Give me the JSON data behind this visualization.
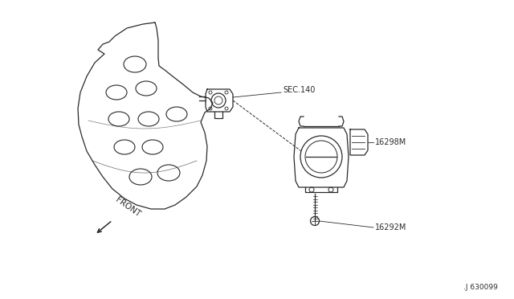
{
  "bg_color": "#ffffff",
  "line_color": "#2a2a2a",
  "lw": 0.9,
  "labels": {
    "sec140": "SEC.140",
    "part1": "16298M",
    "part2": "16292M",
    "front": "FRONT",
    "diagram_id": ".J 630099"
  },
  "label_fontsize": 7,
  "diagram_id_fontsize": 6.5
}
